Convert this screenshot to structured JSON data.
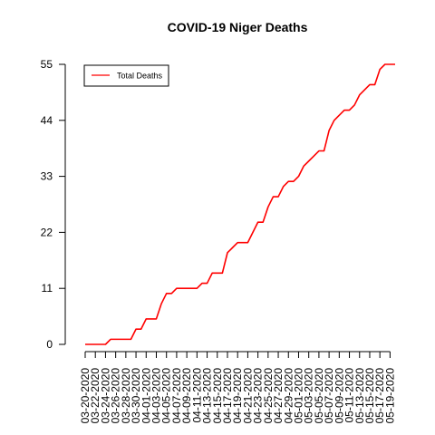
{
  "chart_data": {
    "type": "line",
    "title": "COVID-19 Niger Deaths",
    "xlabel": "",
    "ylabel": "",
    "ylim": [
      0,
      55
    ],
    "yticks": [
      0,
      11,
      22,
      33,
      44,
      55
    ],
    "grid": false,
    "legend_position": "top-left",
    "x_tick_labels": [
      "03-20-2020",
      "03-22-2020",
      "03-24-2020",
      "03-26-2020",
      "03-28-2020",
      "03-30-2020",
      "04-01-2020",
      "04-03-2020",
      "04-05-2020",
      "04-07-2020",
      "04-09-2020",
      "04-11-2020",
      "04-13-2020",
      "04-15-2020",
      "04-17-2020",
      "04-19-2020",
      "04-21-2020",
      "04-23-2020",
      "04-25-2020",
      "04-27-2020",
      "04-29-2020",
      "05-01-2020",
      "05-03-2020",
      "05-05-2020",
      "05-07-2020",
      "05-09-2020",
      "05-11-2020",
      "05-13-2020",
      "05-15-2020",
      "05-17-2020",
      "05-19-2020"
    ],
    "x": [
      "03-20-2020",
      "03-21-2020",
      "03-22-2020",
      "03-23-2020",
      "03-24-2020",
      "03-25-2020",
      "03-26-2020",
      "03-27-2020",
      "03-28-2020",
      "03-29-2020",
      "03-30-2020",
      "03-31-2020",
      "04-01-2020",
      "04-02-2020",
      "04-03-2020",
      "04-04-2020",
      "04-05-2020",
      "04-06-2020",
      "04-07-2020",
      "04-08-2020",
      "04-09-2020",
      "04-10-2020",
      "04-11-2020",
      "04-12-2020",
      "04-13-2020",
      "04-14-2020",
      "04-15-2020",
      "04-16-2020",
      "04-17-2020",
      "04-18-2020",
      "04-19-2020",
      "04-20-2020",
      "04-21-2020",
      "04-22-2020",
      "04-23-2020",
      "04-24-2020",
      "04-25-2020",
      "04-26-2020",
      "04-27-2020",
      "04-28-2020",
      "04-29-2020",
      "04-30-2020",
      "05-01-2020",
      "05-02-2020",
      "05-03-2020",
      "05-04-2020",
      "05-05-2020",
      "05-06-2020",
      "05-07-2020",
      "05-08-2020",
      "05-09-2020",
      "05-10-2020",
      "05-11-2020",
      "05-12-2020",
      "05-13-2020",
      "05-14-2020",
      "05-15-2020",
      "05-16-2020",
      "05-17-2020",
      "05-18-2020",
      "05-19-2020",
      "05-20-2020"
    ],
    "series": [
      {
        "name": "Total Deaths",
        "color": "#ff0000",
        "values": [
          0,
          0,
          0,
          0,
          0,
          1,
          1,
          1,
          1,
          1,
          3,
          3,
          5,
          5,
          5,
          8,
          10,
          10,
          11,
          11,
          11,
          11,
          11,
          12,
          12,
          14,
          14,
          14,
          18,
          19,
          20,
          20,
          20,
          22,
          24,
          24,
          27,
          29,
          29,
          31,
          32,
          32,
          33,
          35,
          36,
          37,
          38,
          38,
          42,
          44,
          45,
          46,
          46,
          47,
          49,
          50,
          51,
          51,
          54,
          55,
          55,
          55
        ]
      }
    ]
  }
}
